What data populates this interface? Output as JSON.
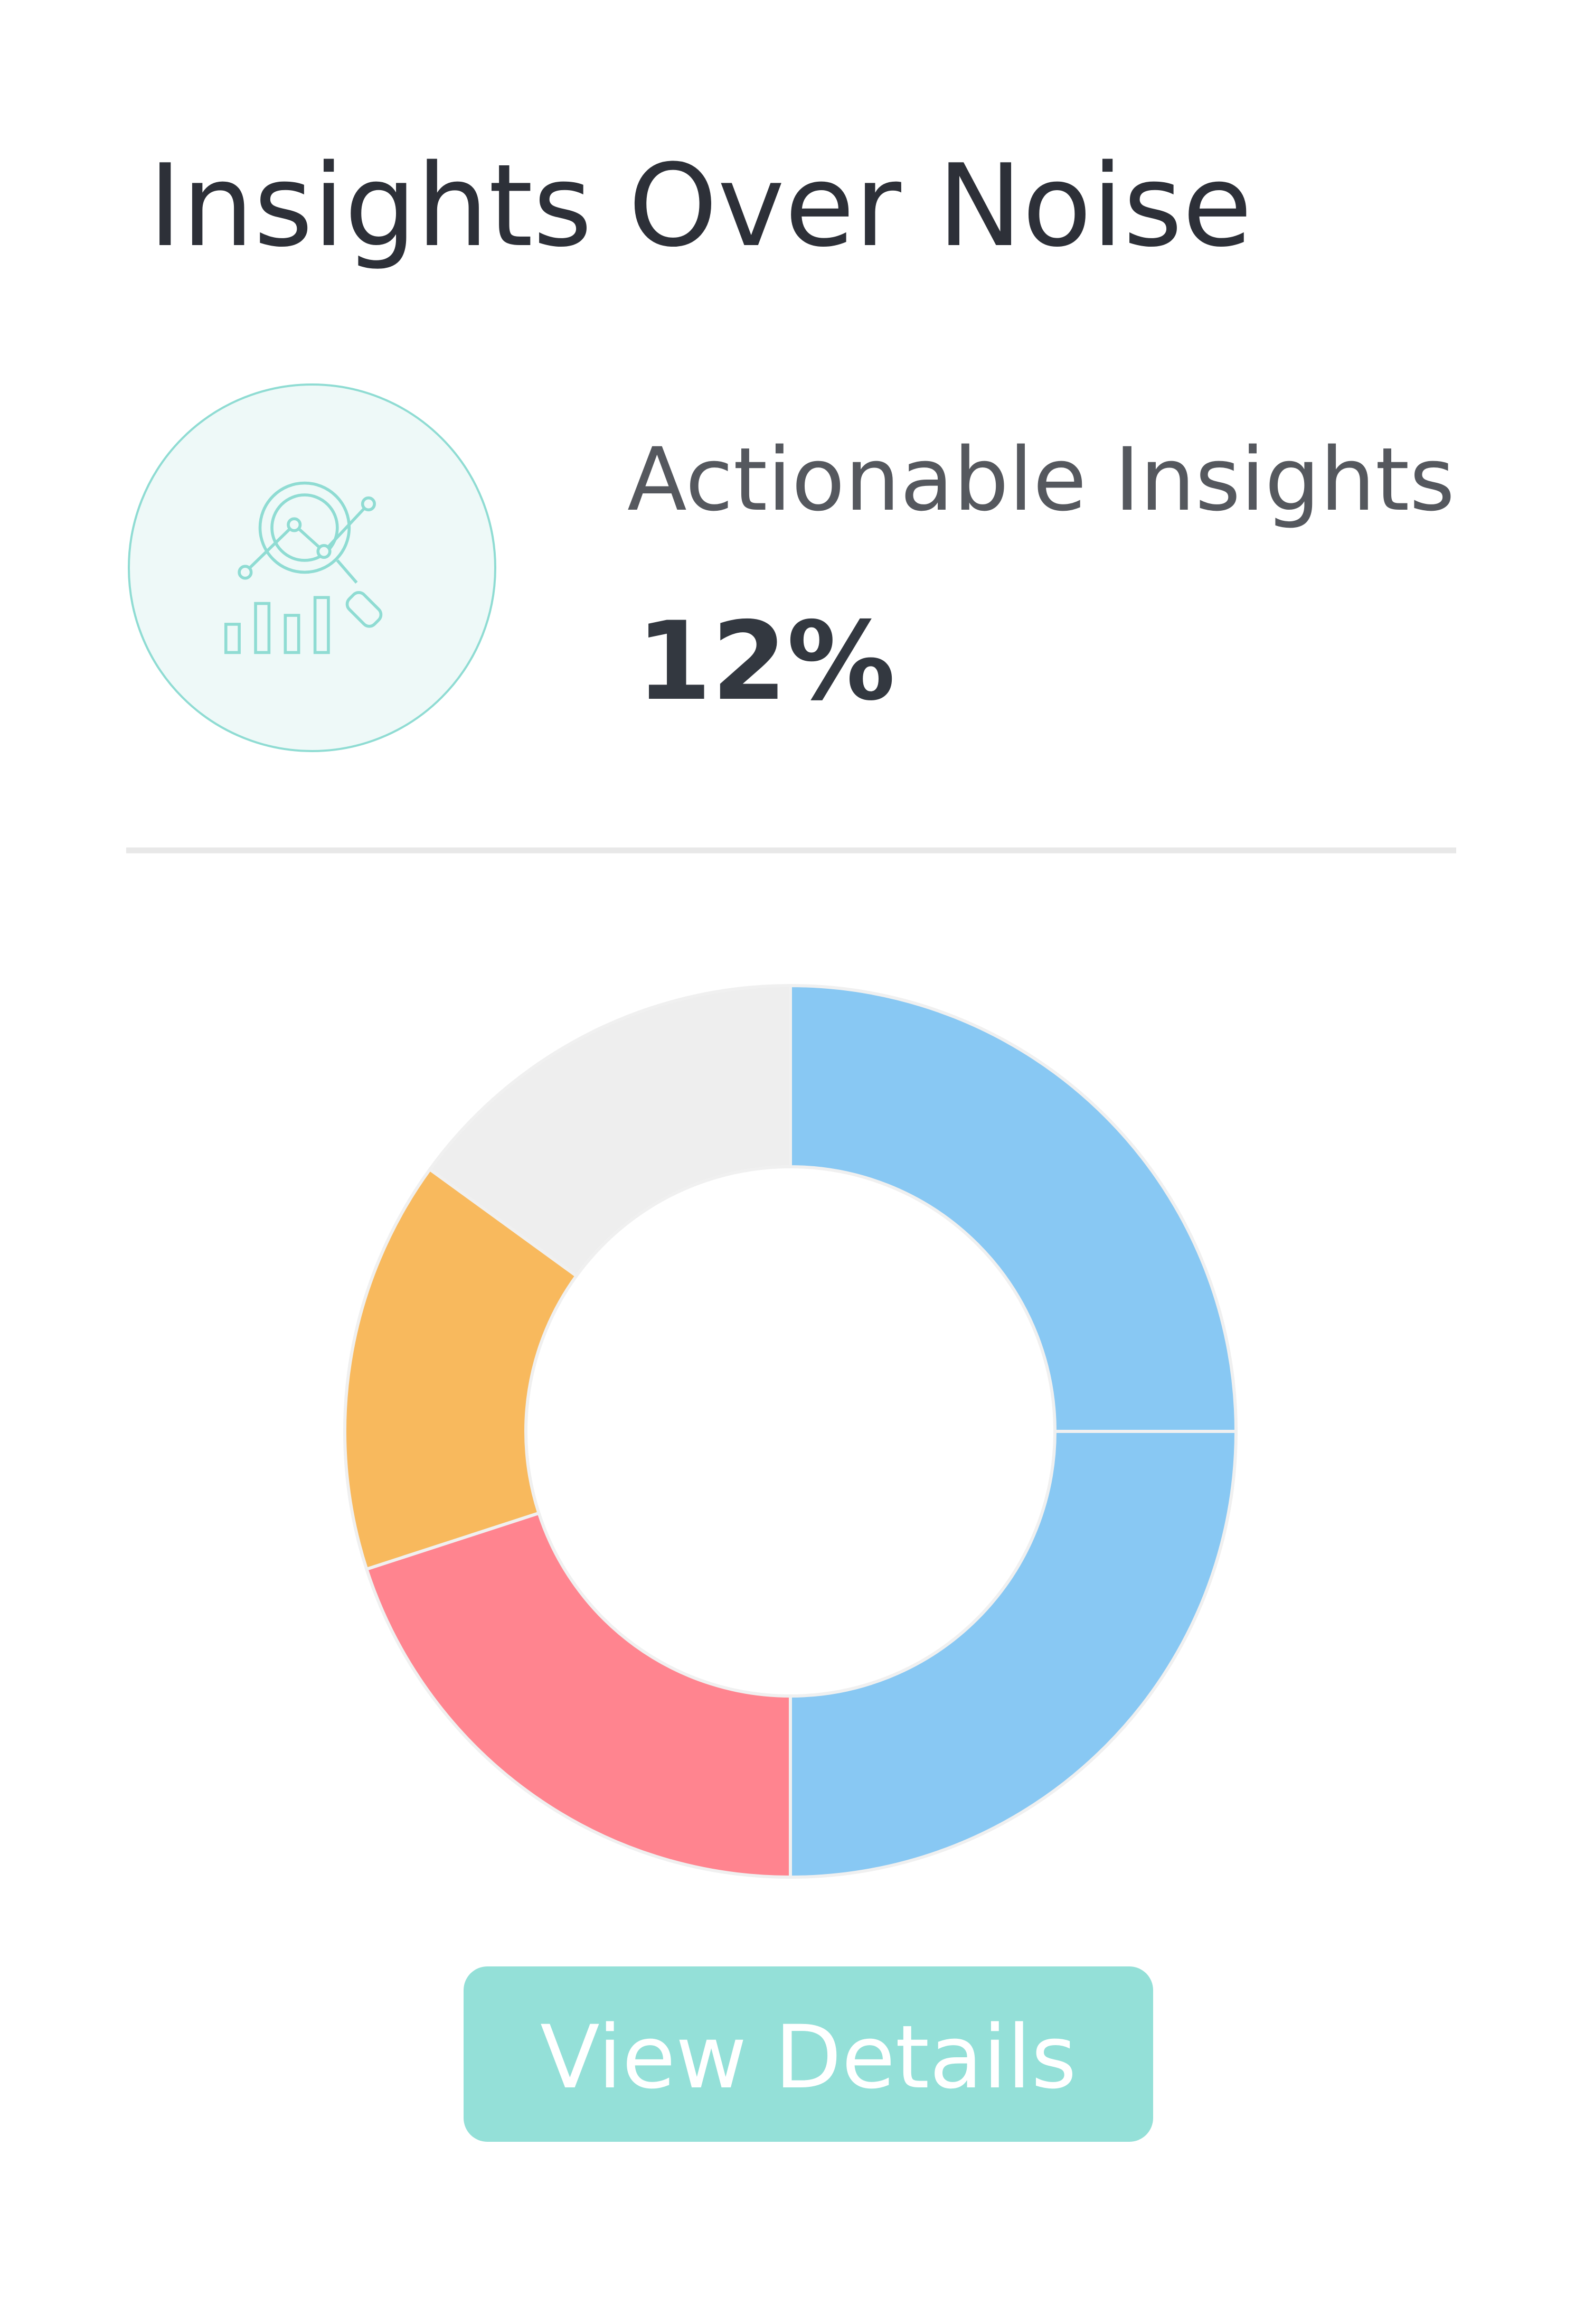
{
  "card": {
    "title": "Insights Over Noise",
    "metric_label": "Actionable Insights",
    "metric_value": "12%",
    "button": "View Details"
  },
  "chart_data": {
    "type": "donut",
    "values": [
      25,
      25,
      20,
      15,
      15
    ],
    "colors": [
      "#88c8f3",
      "#88c8f3",
      "#ff848f",
      "#f8b95d",
      "#eeeeee"
    ]
  }
}
